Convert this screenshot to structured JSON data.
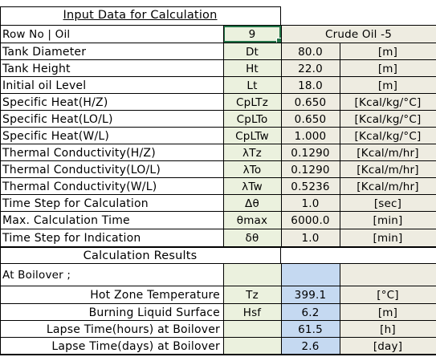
{
  "input_header": "Input Data for Calculation",
  "row_select": {
    "label": "Row No | Oil",
    "row_no": "9",
    "oil_name": "Crude Oil -5"
  },
  "inputs": [
    {
      "label": "Tank Diameter",
      "symbol": "Dt",
      "value": "80.0",
      "unit": "[m]"
    },
    {
      "label": "Tank Height",
      "symbol": "Ht",
      "value": "22.0",
      "unit": "[m]"
    },
    {
      "label": "Initial oil Level",
      "symbol": "Lt",
      "value": "18.0",
      "unit": "[m]"
    },
    {
      "label": "Specific Heat(H/Z)",
      "symbol": "CpLTz",
      "value": "0.650",
      "unit": "[Kcal/kg/°C]"
    },
    {
      "label": "Specific Heat(LO/L)",
      "symbol": "CpLTo",
      "value": "0.650",
      "unit": "[Kcal/kg/°C]"
    },
    {
      "label": "Specific Heat(W/L)",
      "symbol": "CpLTw",
      "value": "1.000",
      "unit": "[Kcal/kg/°C]"
    },
    {
      "label": "Thermal Conductivity(H/Z)",
      "symbol": "λTz",
      "value": "0.1290",
      "unit": "[Kcal/m/hr]"
    },
    {
      "label": "Thermal Conductivity(LO/L)",
      "symbol": "λTo",
      "value": "0.1290",
      "unit": "[Kcal/m/hr]"
    },
    {
      "label": "Thermal Conductivity(W/L)",
      "symbol": "λTw",
      "value": "0.5236",
      "unit": "[Kcal/m/hr]"
    },
    {
      "label": "Time Step for Calculation",
      "symbol": "Δθ",
      "value": "1.0",
      "unit": "[sec]"
    },
    {
      "label": "Max. Calculation Time",
      "symbol": "θmax",
      "value": "6000.0",
      "unit": "[min]"
    },
    {
      "label": "Time Step for Indication",
      "symbol": "δθ",
      "value": "1.0",
      "unit": "[min]"
    }
  ],
  "results_header": "Calculation Results",
  "boilover_label": "At Boilover ;",
  "results": [
    {
      "label": "Hot Zone Temperature",
      "symbol": "Tz",
      "value": "399.1",
      "unit": "[°C]"
    },
    {
      "label": "Burning Liquid Surface",
      "symbol": "Hsf",
      "value": "6.2",
      "unit": "[m]"
    },
    {
      "label": "Lapse Time(hours) at Boilover",
      "symbol": "",
      "value": "61.5",
      "unit": "[h]"
    },
    {
      "label": "Lapse Time(days) at Boilover",
      "symbol": "",
      "value": "2.6",
      "unit": "[day]"
    }
  ]
}
